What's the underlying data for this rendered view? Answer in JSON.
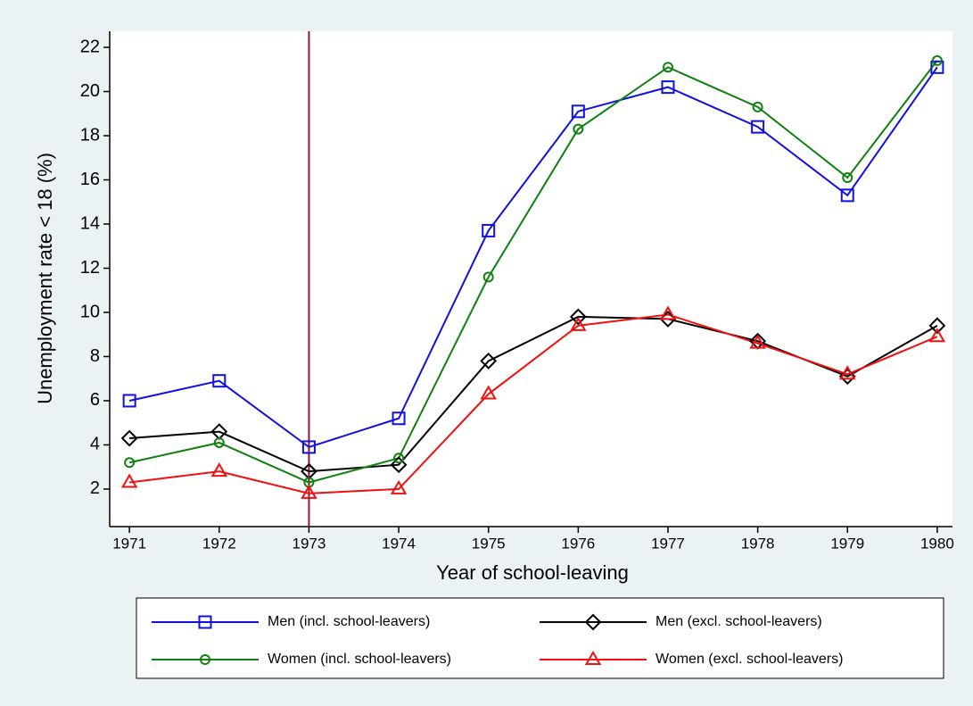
{
  "chart_data": {
    "type": "line",
    "y_label": "Unemployment rate < 18 (%)",
    "x_label": "Year of school-leaving",
    "x": [
      1971,
      1972,
      1973,
      1974,
      1975,
      1976,
      1977,
      1978,
      1979,
      1980
    ],
    "series": [
      {
        "name": "Men (incl. school-leavers)",
        "color": "#1010e0",
        "marker": "square",
        "values": [
          6.0,
          6.9,
          3.9,
          5.2,
          13.7,
          19.1,
          20.2,
          18.4,
          15.3,
          21.1
        ]
      },
      {
        "name": "Men (excl. school-leavers)",
        "color": "#000000",
        "marker": "diamond",
        "values": [
          4.3,
          4.6,
          2.8,
          3.1,
          7.8,
          9.8,
          9.7,
          8.7,
          7.1,
          9.4
        ]
      },
      {
        "name": "Women (incl. school-leavers)",
        "color": "#108010",
        "marker": "circle",
        "values": [
          3.2,
          4.1,
          2.3,
          3.4,
          11.6,
          18.3,
          21.1,
          19.3,
          16.1,
          21.4
        ]
      },
      {
        "name": "Women (excl. school-leavers)",
        "color": "#f01010",
        "marker": "triangle",
        "values": [
          2.3,
          2.8,
          1.8,
          2.0,
          6.3,
          9.4,
          9.9,
          8.6,
          7.2,
          8.9
        ]
      }
    ],
    "xlim": [
      1970.78,
      1980.17
    ],
    "xticks": [
      1971,
      1972,
      1973,
      1974,
      1975,
      1976,
      1977,
      1978,
      1979,
      1980
    ],
    "ylim": [
      0.3,
      22.73
    ],
    "yticks": [
      2,
      4,
      6,
      8,
      10,
      12,
      14,
      16,
      18,
      20,
      22
    ],
    "vline": 1973,
    "vline_color": "#a01030",
    "legend_position": "bottom",
    "legend_columns": 2
  }
}
